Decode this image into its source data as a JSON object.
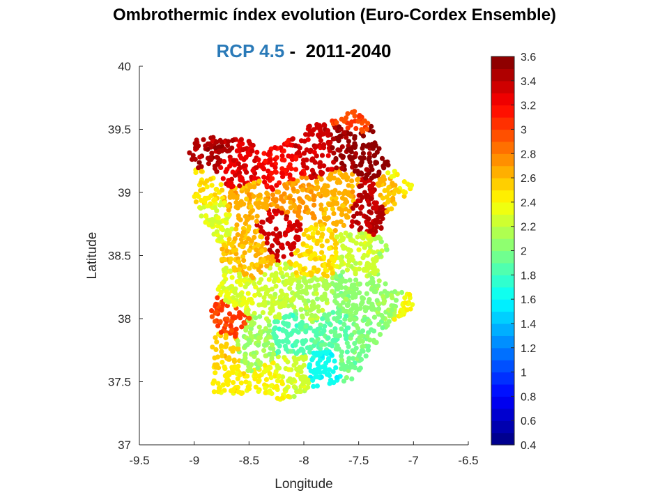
{
  "title": "Ombrothermic índex evolution (Euro-Cordex Ensemble)",
  "subtitle": {
    "scenario": "RCP 4.5",
    "separator": " -  ",
    "period": "2011-2040"
  },
  "chart_data": {
    "type": "scatter",
    "xlabel": "Longitude",
    "ylabel": "Latitude",
    "xlim": [
      -9.5,
      -6.5
    ],
    "ylim": [
      37,
      40
    ],
    "xticks": [
      -9.5,
      -9,
      -8.5,
      -8,
      -7.5,
      -7,
      -6.5
    ],
    "yticks": [
      37,
      37.5,
      38,
      38.5,
      39,
      39.5,
      40
    ],
    "colorbar": {
      "range": [
        0.4,
        3.6
      ],
      "ticks": [
        0.4,
        0.6,
        0.8,
        1,
        1.2,
        1.4,
        1.6,
        1.8,
        2,
        2.2,
        2.4,
        2.6,
        2.8,
        3,
        3.2,
        3.4,
        3.6
      ],
      "colormap": "jet",
      "levels": 32
    },
    "zones": [
      {
        "lon": -8.85,
        "lat": 39.35,
        "value": 3.45
      },
      {
        "lon": -8.6,
        "lat": 39.15,
        "value": 3.3
      },
      {
        "lon": -8.2,
        "lat": 39.2,
        "value": 3.2
      },
      {
        "lon": -7.9,
        "lat": 39.35,
        "value": 3.35
      },
      {
        "lon": -7.6,
        "lat": 39.4,
        "value": 3.5
      },
      {
        "lon": -7.35,
        "lat": 39.35,
        "value": 3.55
      },
      {
        "lon": -7.55,
        "lat": 39.6,
        "value": 3.0
      },
      {
        "lon": -7.4,
        "lat": 38.85,
        "value": 3.4
      },
      {
        "lon": -8.2,
        "lat": 38.7,
        "value": 3.35
      },
      {
        "lon": -8.9,
        "lat": 39.0,
        "value": 2.5
      },
      {
        "lon": -8.85,
        "lat": 38.8,
        "value": 2.3
      },
      {
        "lon": -8.55,
        "lat": 38.95,
        "value": 2.65
      },
      {
        "lon": -8.1,
        "lat": 38.95,
        "value": 2.7
      },
      {
        "lon": -7.7,
        "lat": 38.95,
        "value": 2.65
      },
      {
        "lon": -7.15,
        "lat": 38.95,
        "value": 2.6
      },
      {
        "lon": -7.05,
        "lat": 39.05,
        "value": 2.4
      },
      {
        "lon": -8.5,
        "lat": 38.5,
        "value": 2.6
      },
      {
        "lon": -7.9,
        "lat": 38.5,
        "value": 2.5
      },
      {
        "lon": -7.5,
        "lat": 38.5,
        "value": 2.25
      },
      {
        "lon": -7.15,
        "lat": 38.55,
        "value": 2.15
      },
      {
        "lon": -8.6,
        "lat": 38.2,
        "value": 2.3
      },
      {
        "lon": -8.25,
        "lat": 38.2,
        "value": 2.25
      },
      {
        "lon": -7.9,
        "lat": 38.15,
        "value": 2.15
      },
      {
        "lon": -7.55,
        "lat": 38.2,
        "value": 2.05
      },
      {
        "lon": -7.2,
        "lat": 38.2,
        "value": 2.1
      },
      {
        "lon": -7.0,
        "lat": 38.1,
        "value": 2.4
      },
      {
        "lon": -8.7,
        "lat": 38.0,
        "value": 3.0
      },
      {
        "lon": -8.75,
        "lat": 37.75,
        "value": 2.55
      },
      {
        "lon": -8.75,
        "lat": 37.5,
        "value": 2.45
      },
      {
        "lon": -8.45,
        "lat": 37.8,
        "value": 2.1
      },
      {
        "lon": -8.1,
        "lat": 37.85,
        "value": 1.85
      },
      {
        "lon": -7.75,
        "lat": 37.9,
        "value": 1.9
      },
      {
        "lon": -7.45,
        "lat": 37.85,
        "value": 2.0
      },
      {
        "lon": -8.1,
        "lat": 37.55,
        "value": 2.25
      },
      {
        "lon": -7.8,
        "lat": 37.6,
        "value": 1.65
      },
      {
        "lon": -7.55,
        "lat": 37.65,
        "value": 1.95
      },
      {
        "lon": -8.3,
        "lat": 37.45,
        "value": 2.4
      }
    ]
  }
}
